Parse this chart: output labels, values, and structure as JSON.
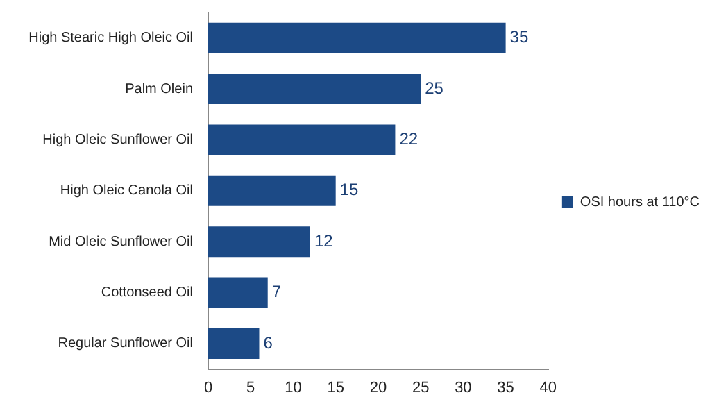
{
  "chart_data": {
    "type": "bar",
    "orientation": "horizontal",
    "categories": [
      "High Stearic High Oleic Oil",
      "Palm Olein",
      "High Oleic Sunflower Oil",
      "High Oleic Canola Oil",
      "Mid Oleic Sunflower Oil",
      "Cottonseed Oil",
      "Regular Sunflower Oil"
    ],
    "series": [
      {
        "name": "OSI hours at 110°C",
        "color": "#1c4a86",
        "values": [
          35,
          25,
          22,
          15,
          12,
          7,
          6
        ]
      }
    ],
    "xlim": [
      0,
      40
    ],
    "xticks": [
      0,
      5,
      10,
      15,
      20,
      25,
      30,
      35,
      40
    ],
    "grid": false,
    "legend": "right",
    "data_labels": true
  }
}
